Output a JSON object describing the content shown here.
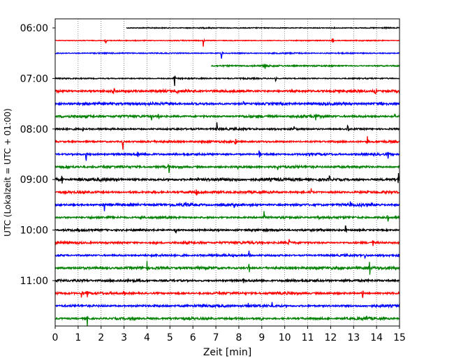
{
  "chart_data": {
    "type": "line",
    "xlabel": "Zeit  [min]",
    "ylabel": "UTC (Lokalzeit = UTC + 01:00)",
    "xlim": [
      0,
      15
    ],
    "x_ticks": [
      "0",
      "1",
      "2",
      "3",
      "4",
      "5",
      "6",
      "7",
      "8",
      "9",
      "10",
      "11",
      "12",
      "13",
      "14",
      "15"
    ],
    "y_tick_labels": [
      "06:00",
      "07:00",
      "08:00",
      "09:00",
      "10:00",
      "11:00"
    ],
    "y_tick_trace_index": [
      0,
      4,
      8,
      12,
      16,
      20
    ],
    "grid": "vertical dotted",
    "color_cycle": [
      "#000000",
      "#ff0000",
      "#0000ff",
      "#008000"
    ],
    "traces": [
      {
        "start": "06:00",
        "start_min": 3.1,
        "noise": 0.8,
        "spikes": []
      },
      {
        "start": "06:15",
        "start_min": 0,
        "noise": 0.7,
        "spikes": [
          [
            2.2,
            6
          ],
          [
            6.45,
            8
          ],
          [
            12.1,
            8
          ]
        ]
      },
      {
        "start": "06:30",
        "start_min": 0,
        "noise": 0.9,
        "spikes": [
          [
            7.25,
            9
          ]
        ]
      },
      {
        "start": "06:45",
        "start_min": 6.8,
        "noise": 1.2,
        "spikes": [
          [
            9.15,
            7
          ]
        ]
      },
      {
        "start": "07:00",
        "start_min": 0,
        "noise": 1.0,
        "spikes": [
          [
            5.2,
            9
          ],
          [
            9.6,
            4
          ]
        ]
      },
      {
        "start": "07:15",
        "start_min": 0,
        "noise": 2.0,
        "spikes": [
          [
            2.55,
            6
          ],
          [
            5.3,
            5
          ],
          [
            13.95,
            8
          ]
        ]
      },
      {
        "start": "07:30",
        "start_min": 0,
        "noise": 2.0,
        "spikes": [
          [
            8.2,
            4
          ],
          [
            14.25,
            8
          ]
        ]
      },
      {
        "start": "07:45",
        "start_min": 0,
        "noise": 1.9,
        "spikes": [
          [
            4.2,
            6
          ],
          [
            4.5,
            7
          ],
          [
            11.35,
            7
          ],
          [
            14.8,
            5
          ]
        ]
      },
      {
        "start": "08:00",
        "start_min": 0,
        "noise": 1.6,
        "spikes": [
          [
            1.2,
            7
          ],
          [
            7.05,
            8
          ],
          [
            10.4,
            7
          ],
          [
            12.75,
            8
          ]
        ]
      },
      {
        "start": "08:15",
        "start_min": 0,
        "noise": 1.6,
        "spikes": [
          [
            2.95,
            8
          ],
          [
            7.85,
            7
          ],
          [
            13.6,
            7
          ]
        ]
      },
      {
        "start": "08:30",
        "start_min": 0,
        "noise": 1.7,
        "spikes": [
          [
            1.35,
            9
          ],
          [
            3.6,
            7
          ],
          [
            8.9,
            7
          ],
          [
            14.5,
            8
          ]
        ]
      },
      {
        "start": "08:45",
        "start_min": 0,
        "noise": 1.8,
        "spikes": [
          [
            4.95,
            8
          ],
          [
            7.95,
            6
          ],
          [
            9.7,
            6
          ]
        ]
      },
      {
        "start": "09:00",
        "start_min": 0,
        "noise": 2.2,
        "spikes": [
          [
            0.3,
            8
          ],
          [
            6.2,
            7
          ],
          [
            11.95,
            7
          ],
          [
            14.95,
            9
          ]
        ]
      },
      {
        "start": "09:15",
        "start_min": 0,
        "noise": 1.9,
        "spikes": [
          [
            6.15,
            8
          ],
          [
            11.15,
            7
          ]
        ]
      },
      {
        "start": "09:30",
        "start_min": 0,
        "noise": 2.0,
        "spikes": [
          [
            2.15,
            8
          ],
          [
            5.7,
            6
          ],
          [
            7.8,
            6
          ],
          [
            12.85,
            6
          ]
        ]
      },
      {
        "start": "09:45",
        "start_min": 0,
        "noise": 1.7,
        "spikes": [
          [
            3.75,
            8
          ],
          [
            9.1,
            7
          ],
          [
            11.45,
            6
          ],
          [
            14.5,
            8
          ]
        ]
      },
      {
        "start": "10:00",
        "start_min": 0,
        "noise": 1.7,
        "spikes": [
          [
            5.25,
            6
          ],
          [
            12.65,
            7
          ]
        ]
      },
      {
        "start": "10:15",
        "start_min": 0,
        "noise": 1.8,
        "spikes": [
          [
            4.4,
            6
          ],
          [
            10.2,
            8
          ],
          [
            13.85,
            7
          ]
        ]
      },
      {
        "start": "10:30",
        "start_min": 0,
        "noise": 1.7,
        "spikes": [
          [
            8.45,
            6
          ],
          [
            13.5,
            5
          ]
        ]
      },
      {
        "start": "10:45",
        "start_min": 0,
        "noise": 2.0,
        "spikes": [
          [
            4.0,
            6
          ],
          [
            8.45,
            8
          ],
          [
            13.7,
            9
          ]
        ]
      },
      {
        "start": "11:00",
        "start_min": 0,
        "noise": 1.8,
        "spikes": [
          [
            8.2,
            6
          ]
        ]
      },
      {
        "start": "11:15",
        "start_min": 0,
        "noise": 1.8,
        "spikes": [
          [
            1.15,
            7
          ],
          [
            1.4,
            6
          ],
          [
            3.0,
            6
          ],
          [
            13.4,
            7
          ]
        ]
      },
      {
        "start": "11:30",
        "start_min": 0,
        "noise": 1.9,
        "spikes": [
          [
            8.4,
            6
          ],
          [
            9.45,
            6
          ]
        ]
      },
      {
        "start": "11:45",
        "start_min": 0,
        "noise": 1.8,
        "spikes": [
          [
            1.4,
            7
          ],
          [
            9.0,
            6
          ],
          [
            13.55,
            7
          ]
        ]
      }
    ]
  }
}
